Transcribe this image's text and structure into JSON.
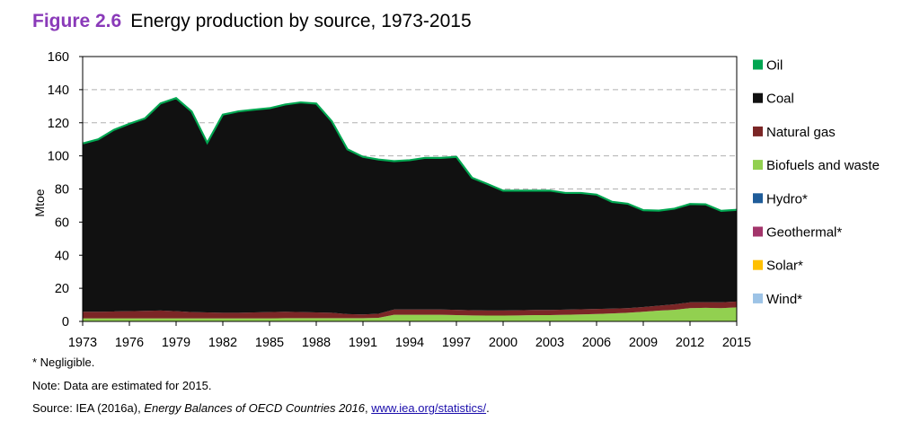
{
  "figure": {
    "number": "Figure 2.6",
    "title": "Energy production by source, 1973-2015"
  },
  "footnotes": {
    "negligible": "* Negligible.",
    "note": "Note: Data are estimated for 2015.",
    "source_prefix": "Source: IEA (2016a), ",
    "source_title": "Energy Balances of OECD Countries 2016",
    "source_sep": ", ",
    "source_link": "www.iea.org/statistics/",
    "source_suffix": "."
  },
  "chart_data": {
    "type": "area",
    "stacked": true,
    "title": "Energy production by source, 1973-2015",
    "xlabel": "",
    "ylabel": "Mtoe",
    "xlim": [
      1973,
      2015
    ],
    "ylim": [
      0,
      160
    ],
    "yticks": [
      0,
      20,
      40,
      60,
      80,
      100,
      120,
      140,
      160
    ],
    "xticks": [
      1973,
      1976,
      1979,
      1982,
      1985,
      1988,
      1991,
      1994,
      1997,
      2000,
      2003,
      2006,
      2009,
      2012,
      2015
    ],
    "grid": "horizontal dashed",
    "legend_position": "right",
    "x": [
      1973,
      1974,
      1975,
      1976,
      1977,
      1978,
      1979,
      1980,
      1981,
      1982,
      1983,
      1984,
      1985,
      1986,
      1987,
      1988,
      1989,
      1990,
      1991,
      1992,
      1993,
      1994,
      1995,
      1996,
      1997,
      1998,
      1999,
      2000,
      2001,
      2002,
      2003,
      2004,
      2005,
      2006,
      2007,
      2008,
      2009,
      2010,
      2011,
      2012,
      2013,
      2014,
      2015
    ],
    "series": [
      {
        "name": "Wind*",
        "color": "#9dc3e6",
        "values": [
          0,
          0,
          0,
          0,
          0,
          0,
          0,
          0,
          0,
          0,
          0,
          0,
          0,
          0,
          0,
          0,
          0,
          0,
          0,
          0,
          0,
          0,
          0,
          0,
          0,
          0,
          0,
          0,
          0,
          0,
          0,
          0,
          0,
          0,
          0,
          0,
          0,
          0,
          0,
          0,
          0,
          0,
          0
        ]
      },
      {
        "name": "Solar*",
        "color": "#ffc000",
        "values": [
          0,
          0,
          0,
          0,
          0,
          0,
          0,
          0,
          0,
          0,
          0,
          0,
          0,
          0,
          0,
          0,
          0,
          0,
          0,
          0,
          0,
          0,
          0,
          0,
          0,
          0,
          0,
          0,
          0,
          0,
          0,
          0,
          0,
          0,
          0,
          0,
          0,
          0,
          0,
          0,
          0,
          0,
          0
        ]
      },
      {
        "name": "Geothermal*",
        "color": "#a3356b",
        "values": [
          0,
          0,
          0,
          0,
          0,
          0,
          0,
          0,
          0,
          0,
          0,
          0,
          0,
          0,
          0,
          0,
          0,
          0,
          0,
          0,
          0,
          0,
          0,
          0,
          0,
          0,
          0,
          0,
          0,
          0,
          0,
          0,
          0,
          0,
          0,
          0,
          0,
          0,
          0,
          0,
          0,
          0,
          0
        ]
      },
      {
        "name": "Hydro*",
        "color": "#1f5c99",
        "values": [
          0,
          0,
          0,
          0,
          0,
          0,
          0,
          0,
          0,
          0,
          0,
          0,
          0,
          0,
          0,
          0,
          0,
          0,
          0,
          0,
          0,
          0,
          0,
          0,
          0,
          0,
          0,
          0,
          0,
          0,
          0,
          0,
          0,
          0,
          0,
          0,
          0,
          0,
          0,
          0,
          0,
          0,
          0
        ]
      },
      {
        "name": "Biofuels and waste",
        "color": "#92d050",
        "values": [
          1.8,
          1.8,
          1.8,
          1.8,
          1.8,
          1.8,
          1.8,
          1.8,
          1.8,
          1.8,
          1.8,
          1.8,
          1.8,
          2,
          2,
          2,
          2,
          2,
          2,
          2.2,
          4,
          4,
          4,
          4,
          3.8,
          3.6,
          3.5,
          3.5,
          3.6,
          3.8,
          3.8,
          4,
          4.2,
          4.5,
          4.8,
          5.2,
          5.8,
          6.5,
          7,
          8,
          8.2,
          8,
          8.5
        ]
      },
      {
        "name": "Natural gas",
        "color": "#7b2626",
        "values": [
          4,
          4,
          4.2,
          4.4,
          4.6,
          4.8,
          4.4,
          3.8,
          3.6,
          3.4,
          3.4,
          3.6,
          3.8,
          3.8,
          3.6,
          3.4,
          3.2,
          2.4,
          2.2,
          2.4,
          3.2,
          3.2,
          3.2,
          3.2,
          3.2,
          3.1,
          3.1,
          3.1,
          3.1,
          3.1,
          3.1,
          3.1,
          3.1,
          3.0,
          2.9,
          2.8,
          2.9,
          3.0,
          3.3,
          3.5,
          3.4,
          3.5,
          3.5
        ]
      },
      {
        "name": "Coal",
        "color": "#111111",
        "values": [
          101.5,
          104,
          109.5,
          113,
          116,
          124.9,
          128.5,
          121,
          102.3,
          119.5,
          121.5,
          122.3,
          123,
          125,
          126.5,
          126,
          115.5,
          99.4,
          95,
          93,
          89.4,
          90,
          91.4,
          91.4,
          92.2,
          79.9,
          76.2,
          72.2,
          72.1,
          71.9,
          71.9,
          70.3,
          70.1,
          68.9,
          64.3,
          62.9,
          58.3,
          57.2,
          57.6,
          59.2,
          58.9,
          55.1,
          55.2
        ]
      },
      {
        "name": "Oil",
        "color": "#00a651",
        "values": [
          0.2,
          0.2,
          0.2,
          0.2,
          0.2,
          0.2,
          0.2,
          0.2,
          0.2,
          0.2,
          0.2,
          0.2,
          0.2,
          0.2,
          0.2,
          0.2,
          0.2,
          0.2,
          0.2,
          0.2,
          0.2,
          0.2,
          0.2,
          0.2,
          0.2,
          0.2,
          0.2,
          0.2,
          0.2,
          0.2,
          0.2,
          0.2,
          0.2,
          0.2,
          0.2,
          0.2,
          0.2,
          0.2,
          0.2,
          0.2,
          0.2,
          0.2,
          0.2
        ]
      }
    ],
    "legend_order": [
      "Oil",
      "Coal",
      "Natural gas",
      "Biofuels and waste",
      "Hydro*",
      "Geothermal*",
      "Solar*",
      "Wind*"
    ]
  }
}
